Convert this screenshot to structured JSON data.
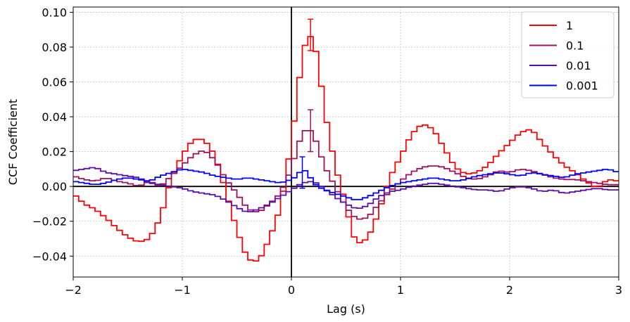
{
  "chart_data": {
    "type": "line",
    "style": "step",
    "title": "",
    "xlabel": "Lag (s)",
    "ylabel": "CCF Coefficient",
    "xlim": [
      -2,
      3
    ],
    "ylim": [
      -0.052,
      0.103
    ],
    "xticks": [
      -2,
      -1,
      0,
      1,
      2,
      3
    ],
    "xtick_labels": [
      "−2",
      "−1",
      "0",
      "1",
      "2",
      "3"
    ],
    "yticks": [
      -0.04,
      -0.02,
      0.0,
      0.02,
      0.04,
      0.06,
      0.08,
      0.1
    ],
    "ytick_labels": [
      "−0.04",
      "−0.02",
      "0.00",
      "0.02",
      "0.04",
      "0.06",
      "0.08",
      "0.10"
    ],
    "grid": true,
    "legend_position": "top-right",
    "reference_lines": {
      "x": 0,
      "y": 0
    },
    "bin_width": 0.05,
    "series": [
      {
        "name": "1",
        "color": "#ff0000",
        "points": [
          [
            -2.0,
            -0.004
          ],
          [
            -1.9,
            -0.01
          ],
          [
            -1.8,
            -0.013
          ],
          [
            -1.7,
            -0.018
          ],
          [
            -1.6,
            -0.024
          ],
          [
            -1.5,
            -0.029
          ],
          [
            -1.4,
            -0.032
          ],
          [
            -1.3,
            -0.03
          ],
          [
            -1.2,
            -0.018
          ],
          [
            -1.1,
            0.005
          ],
          [
            -1.0,
            0.018
          ],
          [
            -0.9,
            0.027
          ],
          [
            -0.8,
            0.027
          ],
          [
            -0.7,
            0.018
          ],
          [
            -0.6,
            -0.003
          ],
          [
            -0.5,
            -0.025
          ],
          [
            -0.4,
            -0.042
          ],
          [
            -0.3,
            -0.043
          ],
          [
            -0.2,
            -0.03
          ],
          [
            -0.1,
            -0.012
          ],
          [
            0.0,
            0.025
          ],
          [
            0.05,
            0.05
          ],
          [
            0.1,
            0.075
          ],
          [
            0.15,
            0.087
          ],
          [
            0.2,
            0.085
          ],
          [
            0.25,
            0.07
          ],
          [
            0.3,
            0.045
          ],
          [
            0.4,
            0.012
          ],
          [
            0.5,
            -0.01
          ],
          [
            0.55,
            -0.025
          ],
          [
            0.6,
            -0.033
          ],
          [
            0.7,
            -0.03
          ],
          [
            0.8,
            -0.015
          ],
          [
            0.9,
            0.005
          ],
          [
            1.0,
            0.017
          ],
          [
            1.1,
            0.03
          ],
          [
            1.2,
            0.036
          ],
          [
            1.3,
            0.033
          ],
          [
            1.4,
            0.022
          ],
          [
            1.5,
            0.011
          ],
          [
            1.6,
            0.007
          ],
          [
            1.7,
            0.008
          ],
          [
            1.8,
            0.012
          ],
          [
            1.9,
            0.019
          ],
          [
            2.0,
            0.025
          ],
          [
            2.1,
            0.031
          ],
          [
            2.2,
            0.033
          ],
          [
            2.3,
            0.025
          ],
          [
            2.4,
            0.018
          ],
          [
            2.5,
            0.012
          ],
          [
            2.6,
            0.008
          ],
          [
            2.7,
            0.003
          ],
          [
            2.8,
            -0.001
          ],
          [
            2.9,
            0.004
          ],
          [
            3.0,
            0.003
          ]
        ],
        "error_bar": {
          "x": 0.175,
          "y": 0.087,
          "err": 0.009
        }
      },
      {
        "name": "0.1",
        "color": "#a0105c",
        "points": [
          [
            -2.0,
            0.006
          ],
          [
            -1.9,
            0.004
          ],
          [
            -1.8,
            0.003
          ],
          [
            -1.7,
            0.005
          ],
          [
            -1.6,
            0.003
          ],
          [
            -1.5,
            0.002
          ],
          [
            -1.4,
            0.0
          ],
          [
            -1.3,
            0.003
          ],
          [
            -1.2,
            0.0
          ],
          [
            -1.1,
            0.006
          ],
          [
            -1.0,
            0.012
          ],
          [
            -0.9,
            0.018
          ],
          [
            -0.8,
            0.021
          ],
          [
            -0.7,
            0.015
          ],
          [
            -0.6,
            0.004
          ],
          [
            -0.5,
            -0.004
          ],
          [
            -0.4,
            -0.013
          ],
          [
            -0.3,
            -0.015
          ],
          [
            -0.2,
            -0.01
          ],
          [
            -0.1,
            -0.004
          ],
          [
            0.0,
            0.01
          ],
          [
            0.05,
            0.022
          ],
          [
            0.1,
            0.03
          ],
          [
            0.15,
            0.034
          ],
          [
            0.2,
            0.03
          ],
          [
            0.25,
            0.022
          ],
          [
            0.3,
            0.012
          ],
          [
            0.4,
            0.0
          ],
          [
            0.5,
            -0.012
          ],
          [
            0.6,
            -0.019
          ],
          [
            0.7,
            -0.018
          ],
          [
            0.8,
            -0.01
          ],
          [
            0.9,
            -0.003
          ],
          [
            1.0,
            0.003
          ],
          [
            1.1,
            0.008
          ],
          [
            1.2,
            0.011
          ],
          [
            1.3,
            0.012
          ],
          [
            1.4,
            0.011
          ],
          [
            1.5,
            0.008
          ],
          [
            1.6,
            0.005
          ],
          [
            1.7,
            0.004
          ],
          [
            1.8,
            0.006
          ],
          [
            1.9,
            0.009
          ],
          [
            2.0,
            0.008
          ],
          [
            2.1,
            0.01
          ],
          [
            2.2,
            0.009
          ],
          [
            2.3,
            0.007
          ],
          [
            2.4,
            0.005
          ],
          [
            2.5,
            0.004
          ],
          [
            2.6,
            0.004
          ],
          [
            2.7,
            0.003
          ],
          [
            2.8,
            0.002
          ],
          [
            2.9,
            0.001
          ],
          [
            3.0,
            0.001
          ]
        ],
        "error_bar": {
          "x": 0.175,
          "y": 0.032,
          "err": 0.012
        }
      },
      {
        "name": "0.01",
        "color": "#5a0fa8",
        "points": [
          [
            -2.0,
            0.009
          ],
          [
            -1.9,
            0.01
          ],
          [
            -1.8,
            0.011
          ],
          [
            -1.7,
            0.008
          ],
          [
            -1.6,
            0.007
          ],
          [
            -1.5,
            0.006
          ],
          [
            -1.4,
            0.005
          ],
          [
            -1.3,
            0.002
          ],
          [
            -1.2,
            0.001
          ],
          [
            -1.1,
            0.0
          ],
          [
            -1.0,
            -0.001
          ],
          [
            -0.9,
            -0.003
          ],
          [
            -0.8,
            -0.004
          ],
          [
            -0.7,
            -0.005
          ],
          [
            -0.6,
            -0.008
          ],
          [
            -0.5,
            -0.012
          ],
          [
            -0.4,
            -0.015
          ],
          [
            -0.3,
            -0.013
          ],
          [
            -0.2,
            -0.01
          ],
          [
            -0.1,
            -0.006
          ],
          [
            0.0,
            -0.002
          ],
          [
            0.1,
            0.002
          ],
          [
            0.2,
            0.003
          ],
          [
            0.3,
            -0.001
          ],
          [
            0.4,
            -0.006
          ],
          [
            0.5,
            -0.01
          ],
          [
            0.6,
            -0.013
          ],
          [
            0.7,
            -0.011
          ],
          [
            0.8,
            -0.006
          ],
          [
            0.9,
            -0.003
          ],
          [
            1.0,
            -0.002
          ],
          [
            1.1,
            0.0
          ],
          [
            1.2,
            0.001
          ],
          [
            1.3,
            0.002
          ],
          [
            1.4,
            0.001
          ],
          [
            1.5,
            0.0
          ],
          [
            1.6,
            -0.001
          ],
          [
            1.7,
            -0.002
          ],
          [
            1.8,
            -0.002
          ],
          [
            1.9,
            -0.003
          ],
          [
            2.0,
            -0.001
          ],
          [
            2.1,
            0.0
          ],
          [
            2.2,
            -0.001
          ],
          [
            2.3,
            -0.003
          ],
          [
            2.4,
            -0.002
          ],
          [
            2.5,
            -0.004
          ],
          [
            2.6,
            -0.003
          ],
          [
            2.7,
            -0.002
          ],
          [
            2.8,
            -0.001
          ],
          [
            2.9,
            -0.002
          ],
          [
            3.0,
            -0.002
          ]
        ],
        "error_bar": null
      },
      {
        "name": "0.001",
        "color": "#0000ff",
        "points": [
          [
            -2.0,
            0.003
          ],
          [
            -1.9,
            0.002
          ],
          [
            -1.8,
            0.001
          ],
          [
            -1.7,
            0.002
          ],
          [
            -1.6,
            0.004
          ],
          [
            -1.5,
            0.005
          ],
          [
            -1.4,
            0.004
          ],
          [
            -1.3,
            0.003
          ],
          [
            -1.2,
            0.006
          ],
          [
            -1.1,
            0.008
          ],
          [
            -1.0,
            0.01
          ],
          [
            -0.9,
            0.009
          ],
          [
            -0.8,
            0.008
          ],
          [
            -0.7,
            0.006
          ],
          [
            -0.6,
            0.005
          ],
          [
            -0.5,
            0.004
          ],
          [
            -0.4,
            0.005
          ],
          [
            -0.3,
            0.004
          ],
          [
            -0.2,
            0.003
          ],
          [
            -0.1,
            0.002
          ],
          [
            0.0,
            0.004
          ],
          [
            0.05,
            0.006
          ],
          [
            0.1,
            0.01
          ],
          [
            0.15,
            0.008
          ],
          [
            0.2,
            0.002
          ],
          [
            0.3,
            -0.002
          ],
          [
            0.4,
            -0.004
          ],
          [
            0.5,
            -0.006
          ],
          [
            0.6,
            -0.008
          ],
          [
            0.7,
            -0.006
          ],
          [
            0.8,
            -0.003
          ],
          [
            0.9,
            0.0
          ],
          [
            1.0,
            0.002
          ],
          [
            1.1,
            0.003
          ],
          [
            1.2,
            0.004
          ],
          [
            1.3,
            0.005
          ],
          [
            1.4,
            0.004
          ],
          [
            1.5,
            0.003
          ],
          [
            1.6,
            0.004
          ],
          [
            1.7,
            0.006
          ],
          [
            1.8,
            0.007
          ],
          [
            1.9,
            0.008
          ],
          [
            2.0,
            0.007
          ],
          [
            2.1,
            0.006
          ],
          [
            2.2,
            0.008
          ],
          [
            2.3,
            0.007
          ],
          [
            2.4,
            0.006
          ],
          [
            2.5,
            0.005
          ],
          [
            2.6,
            0.007
          ],
          [
            2.7,
            0.008
          ],
          [
            2.8,
            0.009
          ],
          [
            2.9,
            0.01
          ],
          [
            3.0,
            0.008
          ]
        ],
        "error_bar": {
          "x": 0.1,
          "y": 0.008,
          "err": 0.009
        }
      }
    ]
  }
}
